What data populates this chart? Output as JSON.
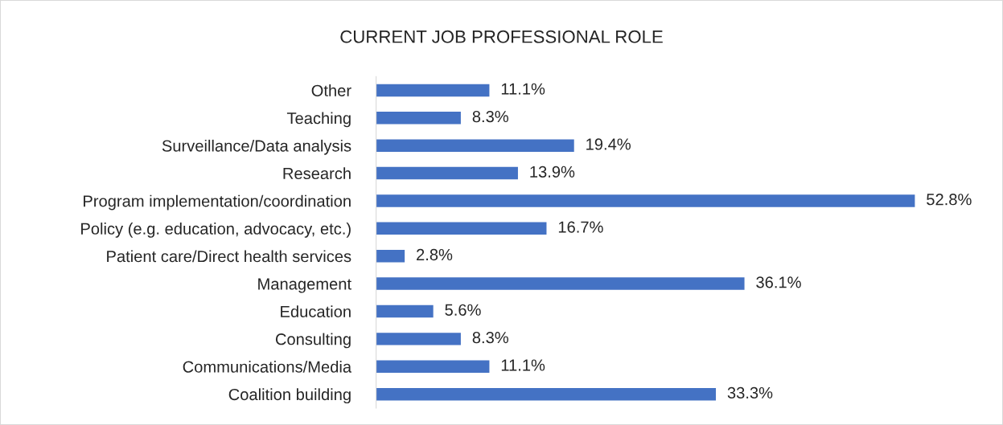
{
  "chart_data": {
    "type": "bar",
    "orientation": "horizontal",
    "title": "CURRENT JOB PROFESSIONAL ROLE",
    "categories": [
      "Other",
      "Teaching",
      "Surveillance/Data analysis",
      "Research",
      "Program implementation/coordination",
      "Policy (e.g. education, advocacy, etc.)",
      "Patient care/Direct health services",
      "Management",
      "Education",
      "Consulting",
      "Communications/Media",
      "Coalition building"
    ],
    "values": [
      11.1,
      8.3,
      19.4,
      13.9,
      52.8,
      16.7,
      2.8,
      36.1,
      5.6,
      8.3,
      11.1,
      33.3
    ],
    "value_labels": [
      "11.1%",
      "8.3%",
      "19.4%",
      "13.9%",
      "52.8%",
      "16.7%",
      "2.8%",
      "36.1%",
      "5.6%",
      "8.3%",
      "11.1%",
      "33.3%"
    ],
    "color": "#4472c4",
    "grid": false,
    "legend": false
  }
}
